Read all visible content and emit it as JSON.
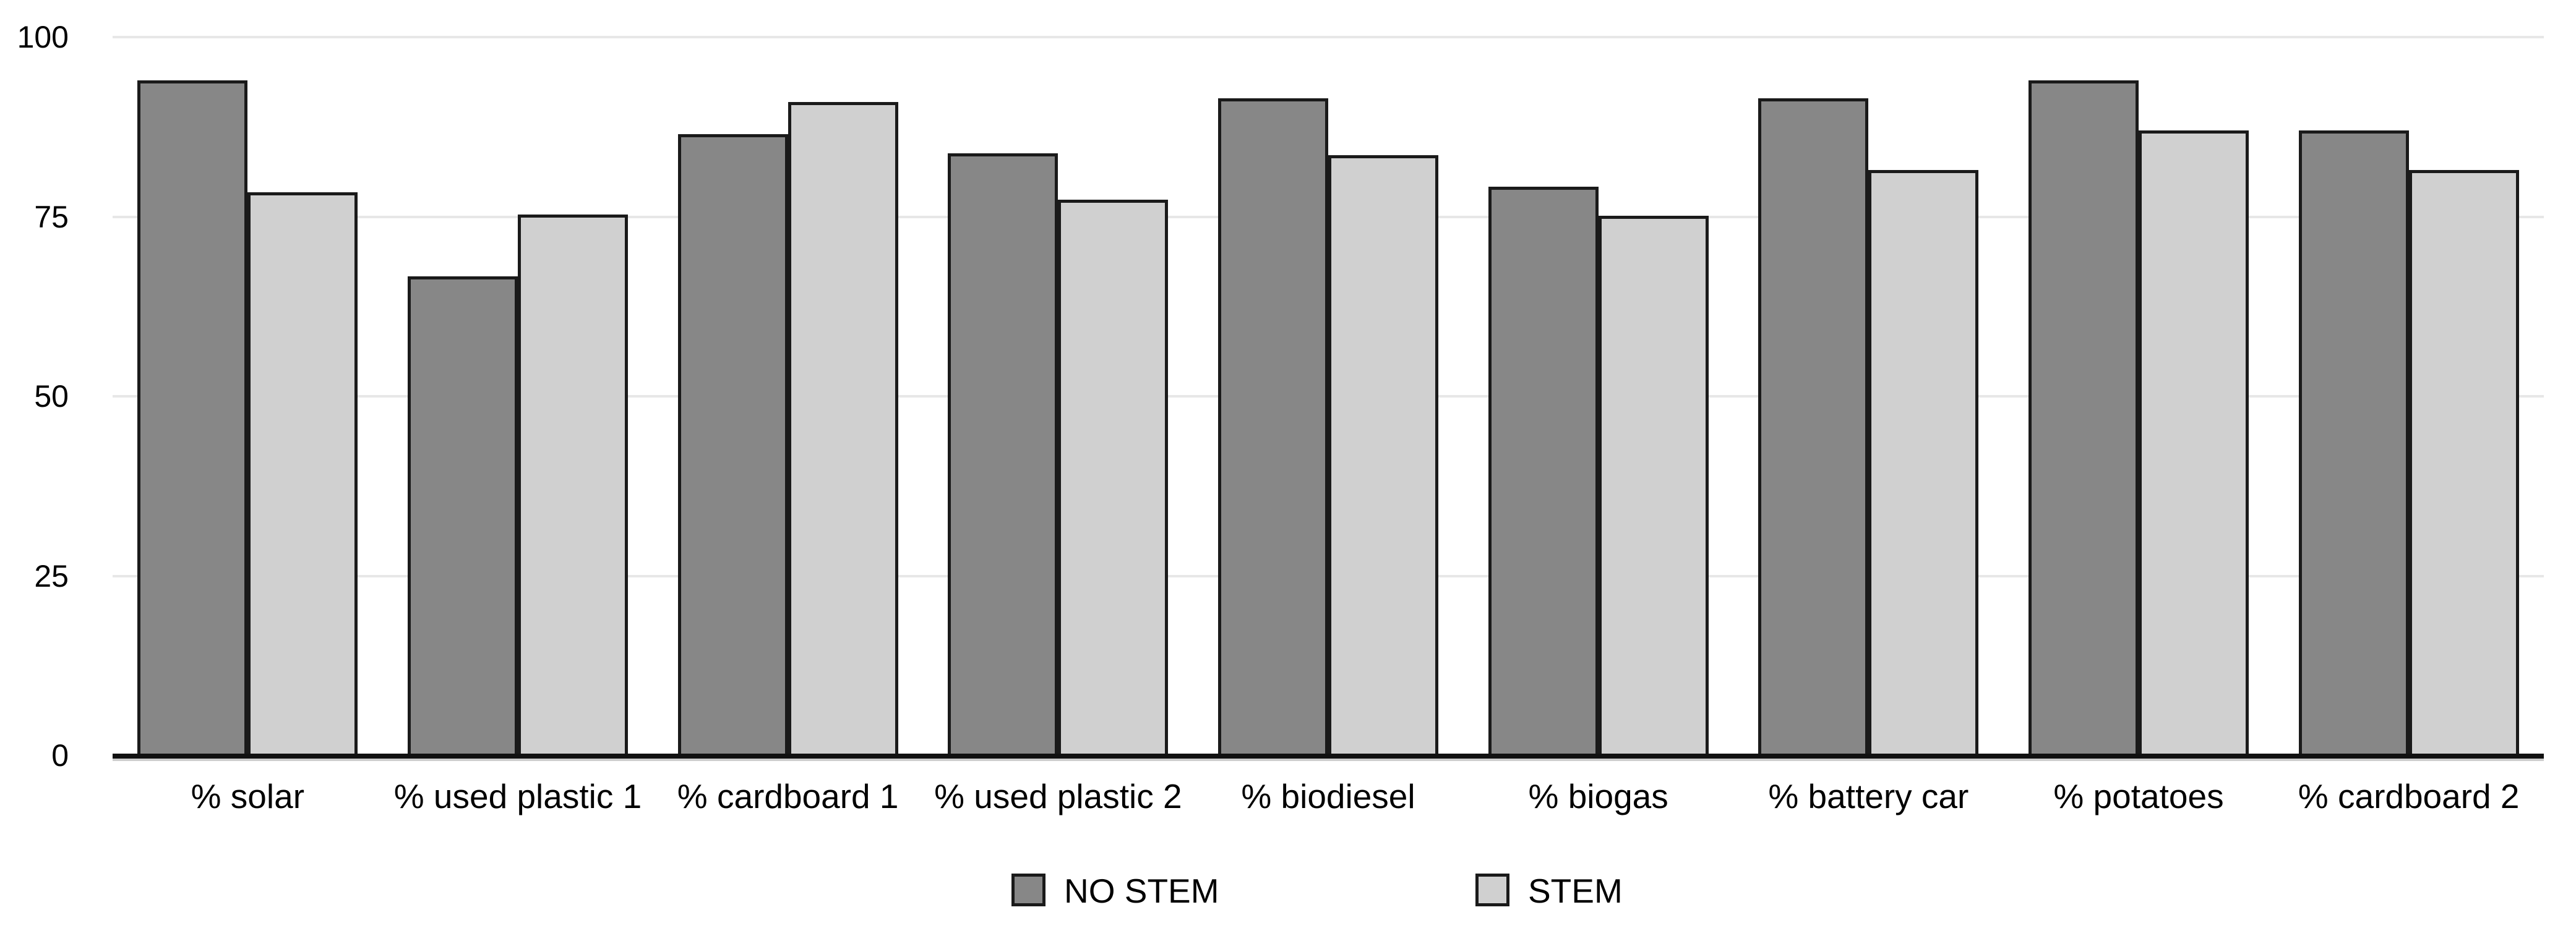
{
  "chart_data": {
    "type": "bar",
    "title": "",
    "xlabel": "",
    "ylabel": "",
    "categories": [
      "% solar",
      "% used plastic 1",
      "% cardboard 1",
      "% used plastic 2",
      "% biodiesel",
      "% biogas",
      "% battery car",
      "% potatoes",
      "% cardboard 2"
    ],
    "series": [
      {
        "name": "NO STEM",
        "color": "#878787",
        "values": [
          94.0,
          66.7,
          86.5,
          83.8,
          91.5,
          79.2,
          91.5,
          94.0,
          87.0
        ]
      },
      {
        "name": "STEM",
        "color": "#d0d0d0",
        "values": [
          78.4,
          75.3,
          91.0,
          77.4,
          83.6,
          75.1,
          81.5,
          87.0,
          81.5
        ]
      }
    ],
    "ylim": [
      0,
      100
    ],
    "yticks": [
      "0",
      "25",
      "50",
      "75",
      "100"
    ],
    "grid": true,
    "legend_position": "bottom",
    "colors": {
      "bar_border": "#1a1a1a",
      "gridline": "#e7e7e7",
      "axis_line": "#111111",
      "axis_shadow": "#cdcdcd",
      "text": "#000000",
      "background": "#ffffff"
    }
  }
}
